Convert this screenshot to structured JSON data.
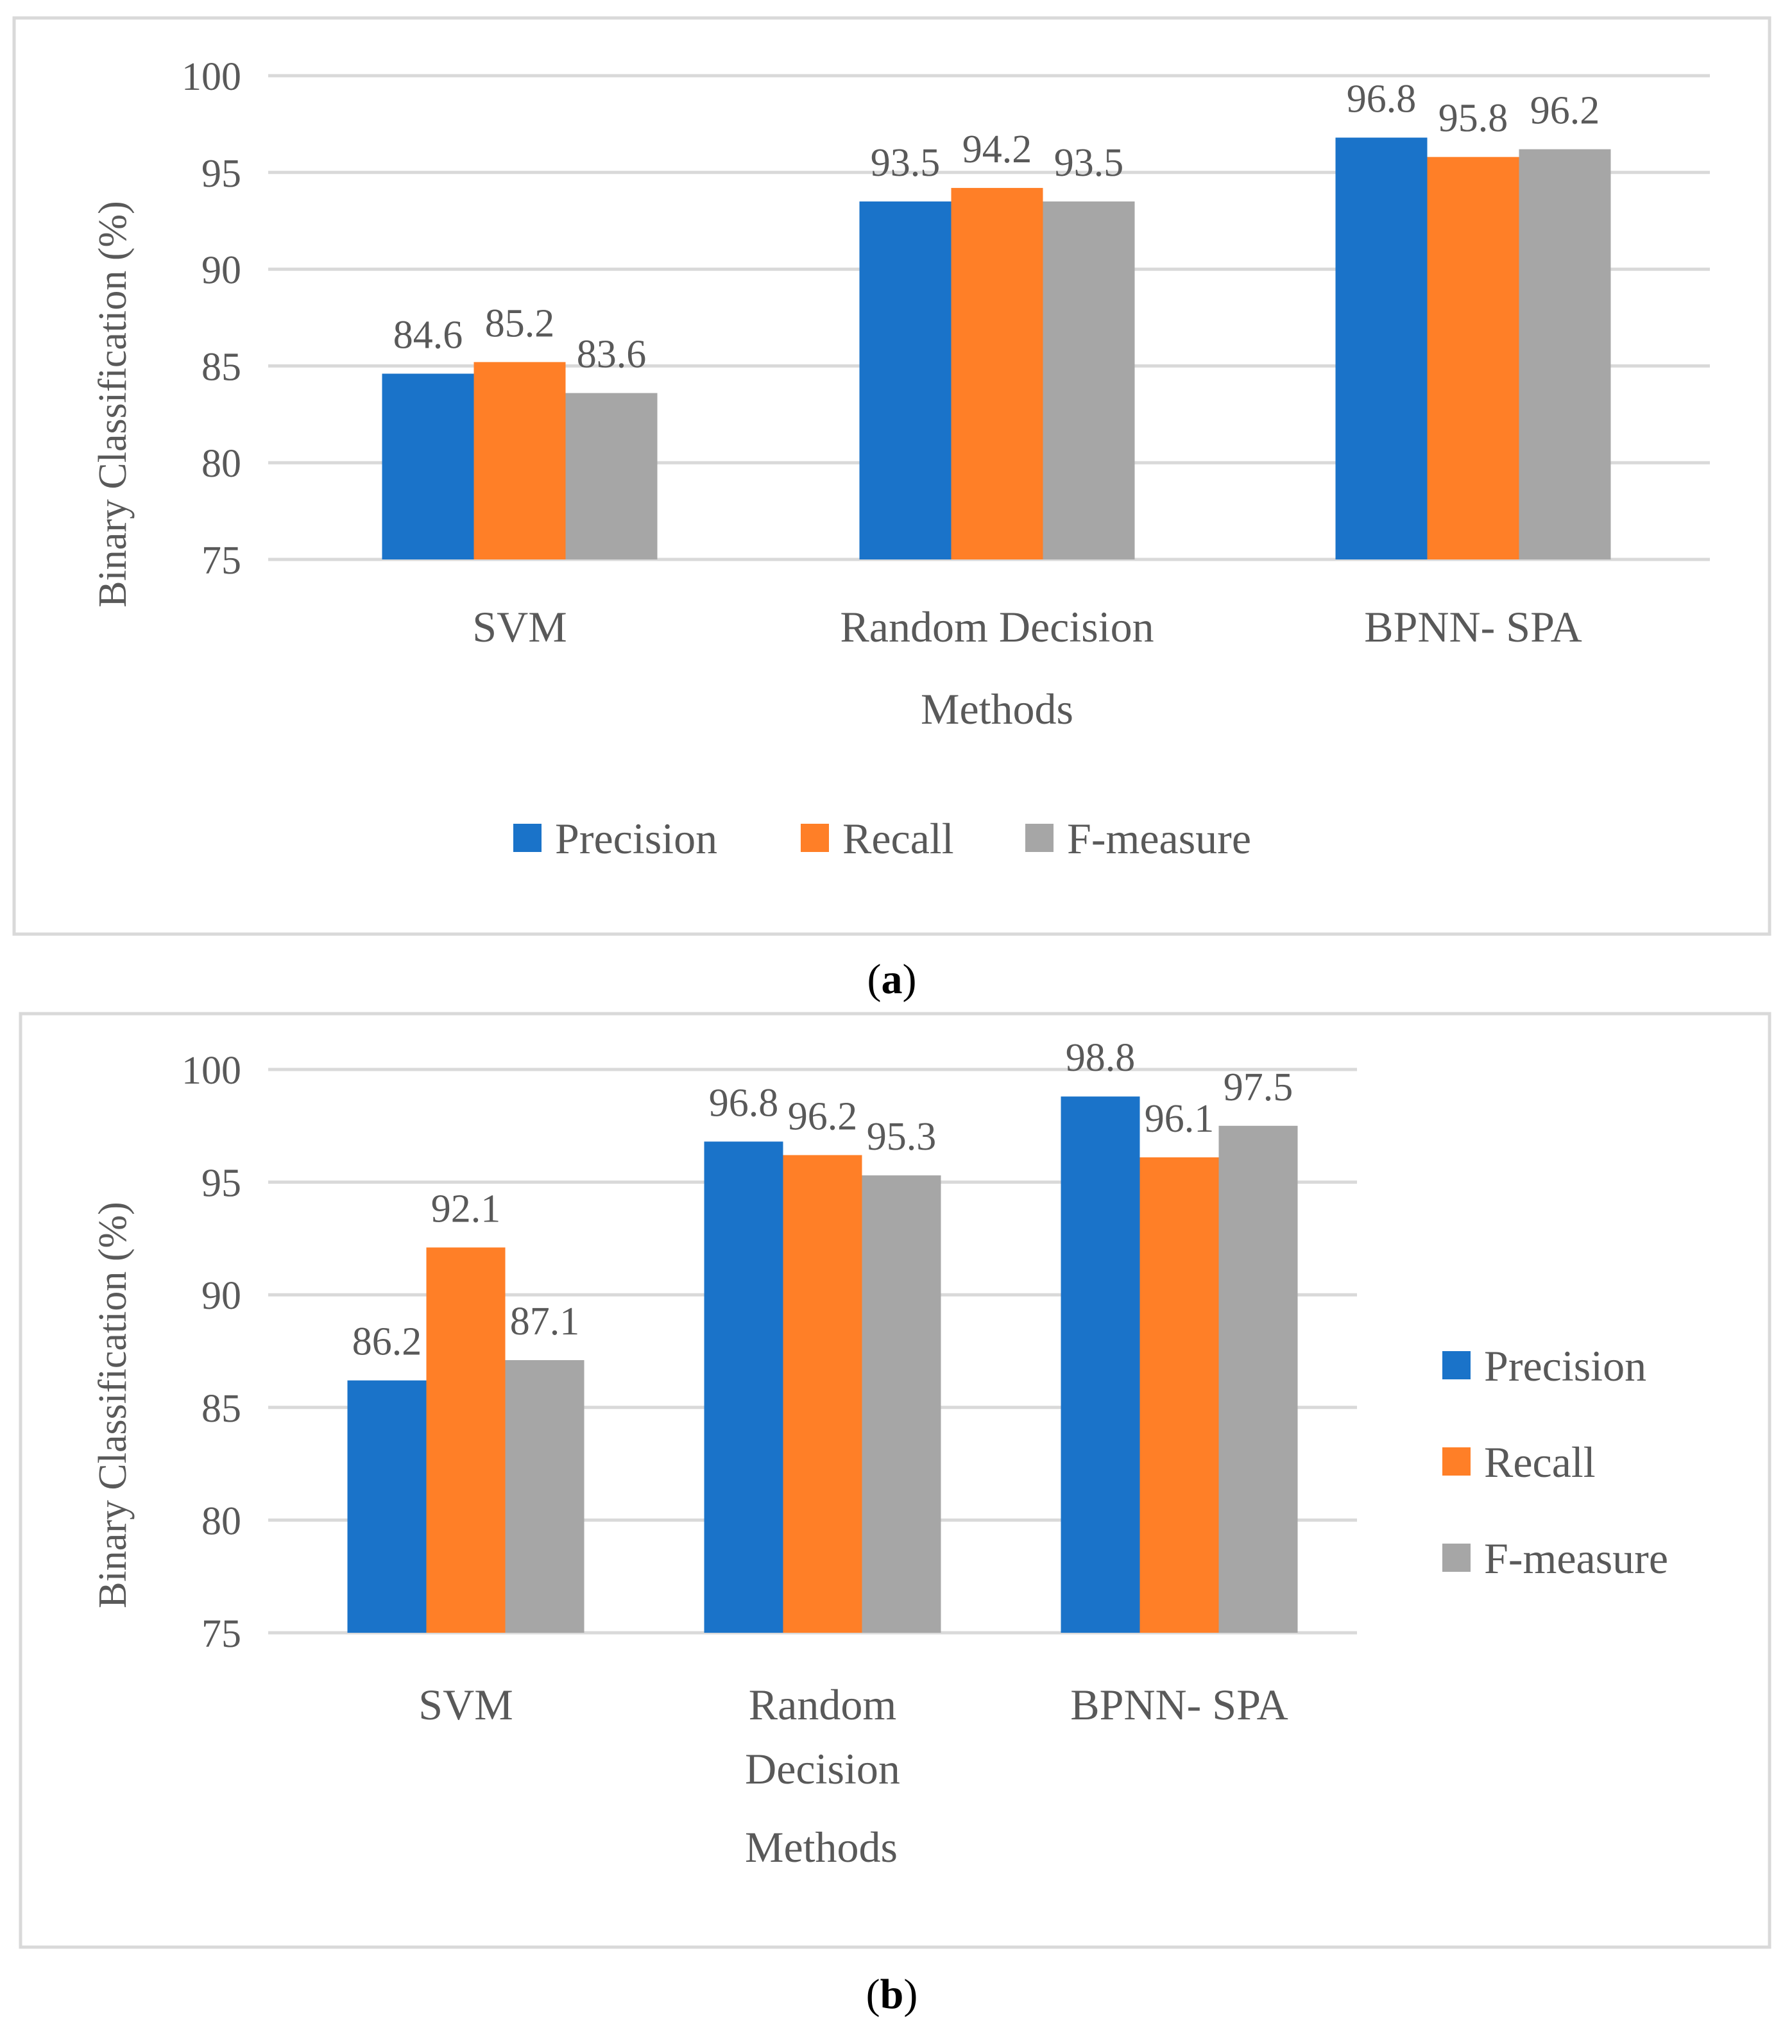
{
  "chart_data": [
    {
      "type": "bar",
      "panel_caption": "(a)",
      "caption_letter": "a",
      "title": "",
      "xlabel": "Methods",
      "ylabel": "Binary Classification  (%)",
      "ylim": [
        75,
        100
      ],
      "yticks": [
        75,
        80,
        85,
        90,
        95,
        100
      ],
      "grid": true,
      "legend_position": "bottom",
      "categories": [
        "SVM",
        "Random Decision",
        "BPNN- SPA"
      ],
      "series": [
        {
          "name": "Precision",
          "color": "#1a73c9",
          "values": [
            84.6,
            93.5,
            96.8
          ],
          "labels": [
            "84.6",
            "93.5",
            "96.8"
          ]
        },
        {
          "name": "Recall",
          "color": "#ff7f27",
          "values": [
            85.2,
            94.2,
            95.8
          ],
          "labels": [
            "85.2",
            "94.2",
            "95.8"
          ]
        },
        {
          "name": "F-measure",
          "color": "#a6a6a6",
          "values": [
            83.6,
            93.5,
            96.2
          ],
          "labels": [
            "83.6",
            "93.5",
            "96.2"
          ]
        }
      ]
    },
    {
      "type": "bar",
      "panel_caption": "(b)",
      "caption_letter": "b",
      "title": "",
      "xlabel": "Methods",
      "ylabel": "Binary Classification (%)",
      "ylim": [
        75,
        100
      ],
      "yticks": [
        75,
        80,
        85,
        90,
        95,
        100
      ],
      "grid": true,
      "legend_position": "right",
      "categories": [
        "SVM",
        "Random Decision",
        "BPNN- SPA"
      ],
      "series": [
        {
          "name": "Precision",
          "color": "#1a73c9",
          "values": [
            86.2,
            96.8,
            98.8
          ],
          "labels": [
            "86.2",
            "96.8",
            "98.8"
          ]
        },
        {
          "name": "Recall",
          "color": "#ff7f27",
          "values": [
            92.1,
            96.2,
            96.1
          ],
          "labels": [
            "92.1",
            "96.2",
            "96.1"
          ]
        },
        {
          "name": "F-measure",
          "color": "#a6a6a6",
          "values": [
            87.1,
            95.3,
            97.5
          ],
          "labels": [
            "87.1",
            "95.3",
            "97.5"
          ]
        }
      ]
    }
  ]
}
